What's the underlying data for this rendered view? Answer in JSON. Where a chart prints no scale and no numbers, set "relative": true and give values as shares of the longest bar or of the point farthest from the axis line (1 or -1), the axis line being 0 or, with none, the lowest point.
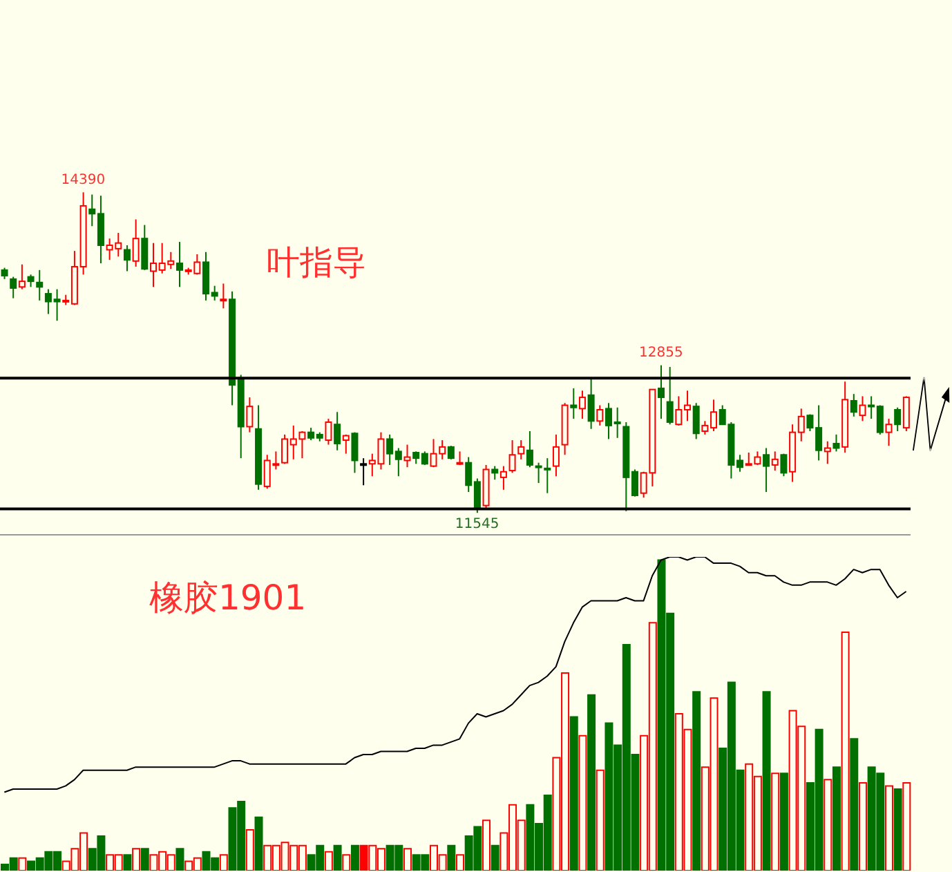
{
  "chart_data": [
    {
      "type": "candlestick",
      "categories": [
        null,
        null,
        null,
        null,
        null,
        null,
        null,
        null,
        null,
        null,
        null,
        null,
        null,
        null,
        null,
        null,
        null,
        null,
        null,
        null,
        null,
        null,
        null,
        null,
        null,
        null,
        null,
        null,
        null,
        null,
        null,
        null,
        null,
        null,
        null,
        null,
        null,
        null,
        null,
        null,
        null,
        null,
        null,
        null,
        null,
        null,
        null,
        null,
        null,
        null,
        null,
        null,
        null,
        null,
        null,
        null,
        null,
        null,
        null,
        null,
        null,
        null,
        null,
        null,
        null,
        null,
        null,
        null,
        null,
        null,
        null,
        null,
        null,
        null,
        null,
        null,
        null,
        null,
        null,
        null,
        null,
        null,
        null,
        null,
        null,
        null,
        null,
        null,
        null,
        null,
        null,
        null,
        null,
        null,
        null,
        null,
        null,
        null,
        null,
        null,
        null,
        null,
        null,
        null
      ],
      "ohlc": [
        [
          13700,
          13720,
          13620,
          13650
        ],
        [
          13620,
          13640,
          13450,
          13540
        ],
        [
          13550,
          13750,
          13530,
          13600
        ],
        [
          13640,
          13660,
          13550,
          13600
        ],
        [
          13590,
          13700,
          13430,
          13550
        ],
        [
          13490,
          13530,
          13310,
          13420
        ],
        [
          13440,
          13530,
          13250,
          13420
        ],
        [
          13420,
          13480,
          13390,
          13430
        ],
        [
          13400,
          13870,
          13390,
          13730
        ],
        [
          13730,
          14390,
          13660,
          14270
        ],
        [
          14240,
          14370,
          14090,
          14200
        ],
        [
          14200,
          14360,
          13760,
          13920
        ],
        [
          13880,
          13980,
          13790,
          13920
        ],
        [
          13890,
          14030,
          13820,
          13940
        ],
        [
          13880,
          13920,
          13690,
          13790
        ],
        [
          13780,
          14150,
          13730,
          13980
        ],
        [
          13980,
          14100,
          13700,
          13710
        ],
        [
          13690,
          13940,
          13550,
          13760
        ],
        [
          13700,
          13940,
          13670,
          13760
        ],
        [
          13750,
          13860,
          13710,
          13780
        ],
        [
          13760,
          13950,
          13550,
          13700
        ],
        [
          13690,
          13720,
          13660,
          13700
        ],
        [
          13670,
          13840,
          13660,
          13770
        ],
        [
          13770,
          13860,
          13430,
          13490
        ],
        [
          13500,
          13560,
          13430,
          13470
        ],
        [
          13430,
          13580,
          13360,
          13440
        ],
        [
          13440,
          13510,
          12500,
          12680
        ],
        [
          12740,
          12770,
          12030,
          12310
        ],
        [
          12310,
          12570,
          12260,
          12490
        ],
        [
          12290,
          12500,
          11750,
          11800
        ],
        [
          11780,
          12060,
          11760,
          12010
        ],
        [
          11970,
          12090,
          11930,
          11980
        ],
        [
          11990,
          12240,
          11980,
          12200
        ],
        [
          12150,
          12320,
          12020,
          12200
        ],
        [
          12200,
          12270,
          12030,
          12260
        ],
        [
          12260,
          12300,
          12190,
          12210
        ],
        [
          12240,
          12260,
          12180,
          12210
        ],
        [
          12190,
          12380,
          12150,
          12350
        ],
        [
          12330,
          12440,
          12100,
          12160
        ],
        [
          12190,
          12240,
          12070,
          12230
        ],
        [
          12250,
          12260,
          11900,
          12010
        ],
        [
          11980,
          12030,
          11790,
          11980
        ],
        [
          11980,
          12070,
          11870,
          12010
        ],
        [
          11980,
          12260,
          11930,
          12200
        ],
        [
          12200,
          12240,
          11970,
          12070
        ],
        [
          12090,
          12120,
          11870,
          12020
        ],
        [
          12010,
          12150,
          11950,
          12040
        ],
        [
          12080,
          12090,
          11980,
          12030
        ],
        [
          12070,
          12090,
          11970,
          11980
        ],
        [
          11960,
          12200,
          11950,
          12070
        ],
        [
          12070,
          12190,
          12020,
          12130
        ],
        [
          12130,
          12140,
          12020,
          12030
        ],
        [
          11980,
          12090,
          11970,
          11990
        ],
        [
          11990,
          12040,
          11730,
          11790
        ],
        [
          11820,
          11850,
          11545,
          11590
        ],
        [
          11610,
          11970,
          11590,
          11930
        ],
        [
          11930,
          11960,
          11840,
          11900
        ],
        [
          11860,
          11960,
          11750,
          11910
        ],
        [
          11920,
          12190,
          11900,
          12060
        ],
        [
          12070,
          12190,
          12020,
          12130
        ],
        [
          12100,
          12270,
          11950,
          11970
        ],
        [
          11960,
          11990,
          11810,
          11950
        ],
        [
          11940,
          12030,
          11720,
          11930
        ],
        [
          11960,
          12240,
          11870,
          12130
        ],
        [
          12150,
          12520,
          12060,
          12500
        ],
        [
          12500,
          12650,
          12380,
          12480
        ],
        [
          12470,
          12630,
          12380,
          12570
        ],
        [
          12590,
          12740,
          12290,
          12360
        ],
        [
          12360,
          12500,
          12320,
          12460
        ],
        [
          12470,
          12520,
          12200,
          12320
        ],
        [
          12350,
          12480,
          12210,
          12340
        ],
        [
          12310,
          12350,
          11560,
          11860
        ],
        [
          11910,
          11930,
          11690,
          11700
        ],
        [
          11720,
          11910,
          11680,
          11900
        ],
        [
          11900,
          12640,
          11780,
          12640
        ],
        [
          12650,
          12855,
          12380,
          12570
        ],
        [
          12530,
          12840,
          12330,
          12350
        ],
        [
          12330,
          12580,
          12320,
          12460
        ],
        [
          12460,
          12630,
          12360,
          12500
        ],
        [
          12490,
          12520,
          12200,
          12250
        ],
        [
          12270,
          12360,
          12240,
          12320
        ],
        [
          12300,
          12550,
          12270,
          12440
        ],
        [
          12460,
          12500,
          12330,
          12330
        ],
        [
          12330,
          12350,
          11850,
          11970
        ],
        [
          12010,
          12060,
          11910,
          11950
        ],
        [
          11970,
          12080,
          11970,
          11980
        ],
        [
          11980,
          12090,
          11970,
          12040
        ],
        [
          12060,
          12120,
          11730,
          11960
        ],
        [
          11970,
          12090,
          11920,
          12020
        ],
        [
          12060,
          12070,
          11870,
          11900
        ],
        [
          11910,
          12330,
          11820,
          12260
        ],
        [
          12260,
          12470,
          12180,
          12400
        ],
        [
          12410,
          12420,
          12270,
          12300
        ],
        [
          12300,
          12500,
          12010,
          12100
        ],
        [
          12090,
          12180,
          11980,
          12120
        ],
        [
          12160,
          12240,
          12090,
          12120
        ],
        [
          12130,
          12710,
          12080,
          12550
        ],
        [
          12540,
          12600,
          12400,
          12440
        ],
        [
          12410,
          12580,
          12360,
          12500
        ],
        [
          12500,
          12580,
          12380,
          12490
        ],
        [
          12490,
          12500,
          12240,
          12260
        ],
        [
          12260,
          12380,
          12140,
          12330
        ],
        [
          12460,
          12480,
          12270,
          12330
        ],
        [
          12300,
          12580,
          12270,
          12570
        ]
      ],
      "colors": [
        "#007000",
        "#007000",
        "#ff0000",
        "#007000",
        "#007000",
        "#007000",
        "#007000",
        "#ff0000",
        "#ff0000",
        "#ff0000",
        "#007000",
        "#007000",
        "#ff0000",
        "#ff0000",
        "#007000",
        "#ff0000",
        "#007000",
        "#ff0000",
        "#ff0000",
        "#ff0000",
        "#007000",
        "#ff0000",
        "#ff0000",
        "#007000",
        "#007000",
        "#ff0000",
        "#007000",
        "#007000",
        "#ff0000",
        "#007000",
        "#ff0000",
        "#ff0000",
        "#ff0000",
        "#ff0000",
        "#ff0000",
        "#007000",
        "#007000",
        "#ff0000",
        "#007000",
        "#ff0000",
        "#007000",
        "#000000",
        "#ff0000",
        "#ff0000",
        "#007000",
        "#007000",
        "#ff0000",
        "#007000",
        "#007000",
        "#ff0000",
        "#ff0000",
        "#007000",
        "#ff0000",
        "#007000",
        "#007000",
        "#ff0000",
        "#007000",
        "#ff0000",
        "#ff0000",
        "#ff0000",
        "#007000",
        "#007000",
        "#007000",
        "#ff0000",
        "#ff0000",
        "#007000",
        "#ff0000",
        "#007000",
        "#ff0000",
        "#007000",
        "#007000",
        "#007000",
        "#007000",
        "#ff0000",
        "#ff0000",
        "#007000",
        "#007000",
        "#ff0000",
        "#ff0000",
        "#007000",
        "#ff0000",
        "#ff0000",
        "#007000",
        "#007000",
        "#007000",
        "#ff0000",
        "#ff0000",
        "#007000",
        "#ff0000",
        "#007000",
        "#ff0000",
        "#ff0000",
        "#007000",
        "#007000",
        "#ff0000",
        "#007000",
        "#ff0000",
        "#007000",
        "#ff0000",
        "#007000",
        "#007000",
        "#ff0000",
        "#007000",
        "#ff0000"
      ],
      "ref_lines": [
        {
          "axis": "y",
          "value": 12740,
          "color": "#000000"
        },
        {
          "axis": "y",
          "value": 11580,
          "color": "#000000"
        }
      ],
      "annotations": [
        {
          "text": "14390",
          "y": 14390
        },
        {
          "text": "12855",
          "y": 12855
        },
        {
          "text": "11545",
          "y": 11545
        },
        "叶指导"
      ]
    },
    {
      "type": "bar",
      "relative": true,
      "categories": [
        null,
        null,
        null,
        null,
        null,
        null,
        null,
        null,
        null,
        null,
        null,
        null,
        null,
        null,
        null,
        null,
        null,
        null,
        null,
        null,
        null,
        null,
        null,
        null,
        null,
        null,
        null,
        null,
        null,
        null,
        null,
        null,
        null,
        null,
        null,
        null,
        null,
        null,
        null,
        null,
        null,
        null,
        null,
        null,
        null,
        null,
        null,
        null,
        null,
        null,
        null,
        null,
        null,
        null,
        null,
        null,
        null,
        null,
        null,
        null,
        null,
        null,
        null,
        null,
        null,
        null,
        null,
        null,
        null,
        null,
        null,
        null,
        null,
        null,
        null,
        null,
        null,
        null,
        null,
        null,
        null,
        null,
        null,
        null,
        null,
        null,
        null,
        null,
        null,
        null,
        null,
        null,
        null,
        null,
        null,
        null,
        null,
        null,
        null,
        null,
        null,
        null,
        null,
        null
      ],
      "series": [
        {
          "type": "bar",
          "values": [
            0.02,
            0.04,
            0.04,
            0.03,
            0.04,
            0.06,
            0.06,
            0.03,
            0.07,
            0.12,
            0.07,
            0.11,
            0.05,
            0.05,
            0.05,
            0.07,
            0.07,
            0.05,
            0.06,
            0.05,
            0.07,
            0.03,
            0.04,
            0.06,
            0.04,
            0.05,
            0.2,
            0.22,
            0.13,
            0.17,
            0.08,
            0.08,
            0.09,
            0.08,
            0.08,
            0.05,
            0.08,
            0.06,
            0.08,
            0.05,
            0.08,
            0.08,
            0.08,
            0.07,
            0.08,
            0.08,
            0.07,
            0.05,
            0.05,
            0.08,
            0.05,
            0.08,
            0.05,
            0.11,
            0.14,
            0.16,
            0.08,
            0.12,
            0.21,
            0.16,
            0.21,
            0.15,
            0.24,
            0.36,
            0.63,
            0.49,
            0.43,
            0.56,
            0.32,
            0.47,
            0.4,
            0.72,
            0.37,
            0.43,
            0.79,
            0.99,
            0.82,
            0.5,
            0.45,
            0.57,
            0.33,
            0.55,
            0.39,
            0.6,
            0.32,
            0.34,
            0.3,
            0.57,
            0.31,
            0.31,
            0.51,
            0.46,
            0.28,
            0.45,
            0.29,
            0.33,
            0.76,
            0.42,
            0.28,
            0.33,
            0.31,
            0.27,
            0.26,
            0.28
          ],
          "colors": [
            "#007000",
            "#007000",
            "#ff0000",
            "#007000",
            "#007000",
            "#007000",
            "#007000",
            "#ff0000",
            "#ff0000",
            "#ff0000",
            "#007000",
            "#007000",
            "#ff0000",
            "#ff0000",
            "#007000",
            "#ff0000",
            "#007000",
            "#ff0000",
            "#ff0000",
            "#ff0000",
            "#007000",
            "#ff0000",
            "#ff0000",
            "#007000",
            "#007000",
            "#ff0000",
            "#007000",
            "#007000",
            "#ff0000",
            "#007000",
            "#ff0000",
            "#ff0000",
            "#ff0000",
            "#ff0000",
            "#ff0000",
            "#007000",
            "#007000",
            "#ff0000",
            "#007000",
            "#ff0000",
            "#007000",
            "#ff0000",
            "#ff0000",
            "#ff0000",
            "#007000",
            "#007000",
            "#ff0000",
            "#007000",
            "#007000",
            "#ff0000",
            "#ff0000",
            "#007000",
            "#ff0000",
            "#007000",
            "#007000",
            "#ff0000",
            "#007000",
            "#ff0000",
            "#ff0000",
            "#ff0000",
            "#007000",
            "#007000",
            "#007000",
            "#ff0000",
            "#ff0000",
            "#007000",
            "#ff0000",
            "#007000",
            "#ff0000",
            "#007000",
            "#007000",
            "#007000",
            "#007000",
            "#ff0000",
            "#ff0000",
            "#007000",
            "#007000",
            "#ff0000",
            "#ff0000",
            "#007000",
            "#ff0000",
            "#ff0000",
            "#007000",
            "#007000",
            "#007000",
            "#ff0000",
            "#ff0000",
            "#007000",
            "#ff0000",
            "#007000",
            "#ff0000",
            "#ff0000",
            "#007000",
            "#007000",
            "#ff0000",
            "#007000",
            "#ff0000",
            "#007000",
            "#ff0000",
            "#007000",
            "#007000",
            "#ff0000",
            "#007000",
            "#ff0000"
          ]
        },
        {
          "type": "line",
          "color": "#000000",
          "values": [
            0.25,
            0.26,
            0.26,
            0.26,
            0.26,
            0.26,
            0.26,
            0.27,
            0.29,
            0.32,
            0.32,
            0.32,
            0.32,
            0.32,
            0.32,
            0.33,
            0.33,
            0.33,
            0.33,
            0.33,
            0.33,
            0.33,
            0.33,
            0.33,
            0.33,
            0.34,
            0.35,
            0.35,
            0.34,
            0.34,
            0.34,
            0.34,
            0.34,
            0.34,
            0.34,
            0.34,
            0.34,
            0.34,
            0.34,
            0.34,
            0.36,
            0.37,
            0.37,
            0.38,
            0.38,
            0.38,
            0.38,
            0.39,
            0.39,
            0.4,
            0.4,
            0.41,
            0.42,
            0.47,
            0.5,
            0.49,
            0.5,
            0.51,
            0.53,
            0.56,
            0.59,
            0.6,
            0.62,
            0.65,
            0.73,
            0.79,
            0.84,
            0.86,
            0.86,
            0.86,
            0.86,
            0.87,
            0.86,
            0.86,
            0.94,
            0.99,
            1,
            1,
            0.99,
            1,
            1,
            0.98,
            0.98,
            0.98,
            0.97,
            0.95,
            0.95,
            0.94,
            0.94,
            0.92,
            0.91,
            0.91,
            0.92,
            0.92,
            0.92,
            0.91,
            0.93,
            0.96,
            0.95,
            0.96,
            0.96,
            0.91,
            0.87,
            0.89
          ]
        }
      ],
      "annotations": [
        "橡胶1901"
      ]
    }
  ]
}
